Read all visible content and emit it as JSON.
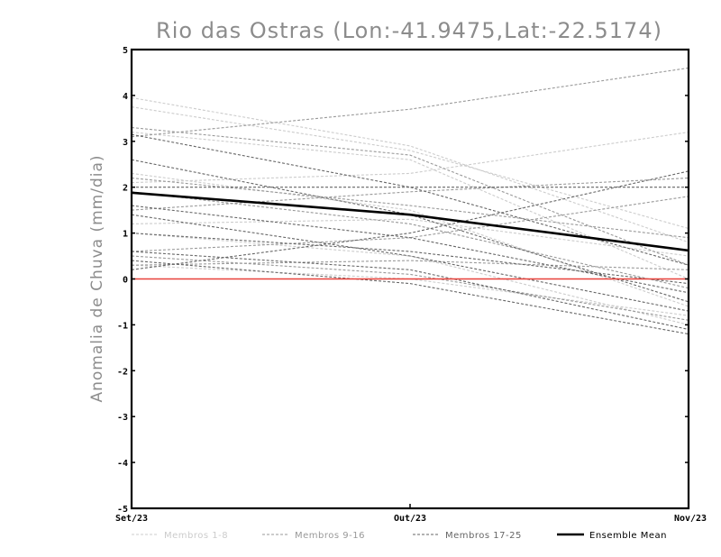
{
  "chart_data": {
    "type": "line",
    "title": "Rio das Ostras (Lon:-41.9475,Lat:-22.5174)",
    "ylabel": "Anomalia de Chuva (mm/dia)",
    "xlabel": "",
    "categories": [
      "Set/23",
      "Out/23",
      "Nov/23"
    ],
    "ylim": [
      -5,
      5
    ],
    "yticks": [
      "5",
      "4",
      "3",
      "2",
      "1",
      "0",
      "-1",
      "-2",
      "-3",
      "-4",
      "-5"
    ],
    "zero_line_color": "#e8413a",
    "legend_placement": "bottom",
    "legend": [
      {
        "label": "Membros 1-8",
        "color": "#cccccc",
        "style": "dashed"
      },
      {
        "label": "Membros 9-16",
        "color": "#999999",
        "style": "dashed"
      },
      {
        "label": "Membros 17-25",
        "color": "#666666",
        "style": "dashed"
      },
      {
        "label": "Ensemble Mean",
        "color": "#000000",
        "style": "solid"
      }
    ],
    "series": [
      {
        "group": "Membros 1-8",
        "color": "#cccccc",
        "values": [
          3.95,
          2.9,
          0.8
        ]
      },
      {
        "group": "Membros 1-8",
        "color": "#cccccc",
        "values": [
          3.75,
          2.8,
          1.1
        ]
      },
      {
        "group": "Membros 1-8",
        "color": "#cccccc",
        "values": [
          2.1,
          2.3,
          3.2
        ]
      },
      {
        "group": "Membros 1-8",
        "color": "#cccccc",
        "values": [
          1.2,
          1.3,
          0.5
        ]
      },
      {
        "group": "Membros 1-8",
        "color": "#cccccc",
        "values": [
          0.3,
          0.0,
          -0.8
        ]
      },
      {
        "group": "Membros 1-8",
        "color": "#cccccc",
        "values": [
          2.3,
          1.5,
          -0.6
        ]
      },
      {
        "group": "Membros 1-8",
        "color": "#cccccc",
        "values": [
          1.0,
          0.5,
          -1.0
        ]
      },
      {
        "group": "Membros 1-8",
        "color": "#cccccc",
        "values": [
          3.2,
          2.6,
          0.0
        ]
      },
      {
        "group": "Membros 9-16",
        "color": "#999999",
        "values": [
          3.1,
          3.7,
          4.6
        ]
      },
      {
        "group": "Membros 9-16",
        "color": "#999999",
        "values": [
          3.3,
          2.7,
          0.3
        ]
      },
      {
        "group": "Membros 9-16",
        "color": "#999999",
        "values": [
          2.2,
          1.6,
          0.9
        ]
      },
      {
        "group": "Membros 9-16",
        "color": "#999999",
        "values": [
          1.5,
          1.9,
          2.2
        ]
      },
      {
        "group": "Membros 9-16",
        "color": "#999999",
        "values": [
          0.6,
          0.9,
          1.8
        ]
      },
      {
        "group": "Membros 9-16",
        "color": "#999999",
        "values": [
          0.3,
          0.4,
          0.2
        ]
      },
      {
        "group": "Membros 9-16",
        "color": "#999999",
        "values": [
          1.9,
          1.2,
          -0.2
        ]
      },
      {
        "group": "Membros 9-16",
        "color": "#999999",
        "values": [
          0.5,
          0.1,
          -0.9
        ]
      },
      {
        "group": "Membros 17-25",
        "color": "#666666",
        "values": [
          3.15,
          2.0,
          0.3
        ]
      },
      {
        "group": "Membros 17-25",
        "color": "#666666",
        "values": [
          2.6,
          1.4,
          -0.5
        ]
      },
      {
        "group": "Membros 17-25",
        "color": "#666666",
        "values": [
          2.0,
          2.0,
          2.0
        ]
      },
      {
        "group": "Membros 17-25",
        "color": "#666666",
        "values": [
          1.6,
          0.9,
          -0.3
        ]
      },
      {
        "group": "Membros 17-25",
        "color": "#666666",
        "values": [
          1.0,
          0.6,
          -0.1
        ]
      },
      {
        "group": "Membros 17-25",
        "color": "#666666",
        "values": [
          0.2,
          1.0,
          2.35
        ]
      },
      {
        "group": "Membros 17-25",
        "color": "#666666",
        "values": [
          0.6,
          0.2,
          -1.1
        ]
      },
      {
        "group": "Membros 17-25",
        "color": "#666666",
        "values": [
          1.4,
          0.5,
          -0.7
        ]
      },
      {
        "group": "Membros 17-25",
        "color": "#666666",
        "values": [
          0.4,
          -0.1,
          -1.2
        ]
      },
      {
        "name": "Ensemble Mean",
        "color": "#000000",
        "values": [
          1.88,
          1.4,
          0.62
        ]
      }
    ]
  }
}
